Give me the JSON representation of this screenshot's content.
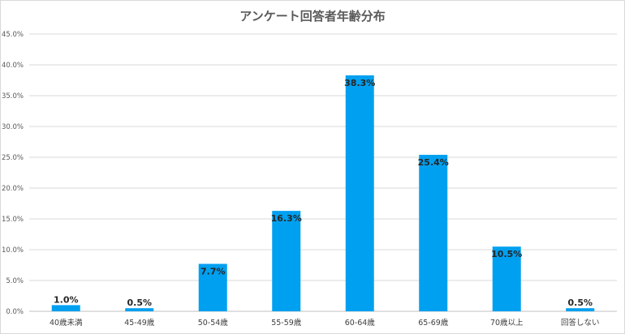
{
  "chart_data": {
    "type": "bar",
    "title": "アンケート回答者年齢分布",
    "xlabel": "",
    "ylabel": "",
    "categories": [
      "40歳未満",
      "45-49歳",
      "50-54歳",
      "55-59歳",
      "60-64歳",
      "65-69歳",
      "70歳以上",
      "回答しない"
    ],
    "values": [
      1.0,
      0.5,
      7.7,
      16.3,
      38.3,
      25.4,
      10.5,
      0.5
    ],
    "data_labels": [
      "1.0%",
      "0.5%",
      "7.7%",
      "16.3%",
      "38.3%",
      "25.4%",
      "10.5%",
      "0.5%"
    ],
    "y_ticks": [
      0,
      5,
      10,
      15,
      20,
      25,
      30,
      35,
      40,
      45
    ],
    "y_tick_labels": [
      "0.0%",
      "5.0%",
      "10.0%",
      "15.0%",
      "20.0%",
      "25.0%",
      "30.0%",
      "35.0%",
      "40.0%",
      "45.0%"
    ],
    "ylim": [
      0,
      45
    ],
    "grid": true,
    "legend": "none",
    "bar_color": "#00a0f0"
  }
}
